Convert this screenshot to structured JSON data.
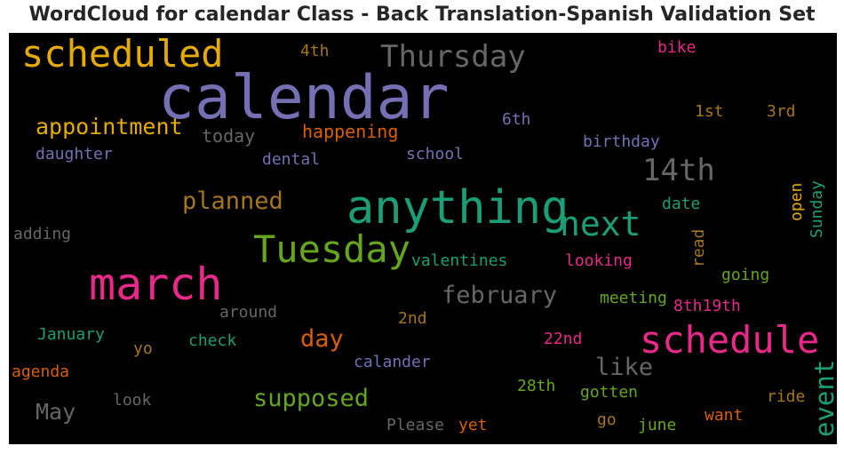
{
  "chart_data": {
    "type": "wordcloud",
    "title": "WordCloud for calendar Class - Back Translation-Spanish Validation Set",
    "background": "#000000",
    "palette": [
      "#7570b3",
      "#1b9e77",
      "#e7298a",
      "#66a61e",
      "#e6ab02",
      "#d95f02",
      "#a6761d",
      "#666666"
    ],
    "words": [
      {
        "text": "calendar",
        "color": "#7570b3"
      },
      {
        "text": "anything",
        "color": "#1b9e77"
      },
      {
        "text": "march",
        "color": "#e7298a"
      },
      {
        "text": "schedule",
        "color": "#e7298a"
      },
      {
        "text": "Tuesday",
        "color": "#66a61e"
      },
      {
        "text": "scheduled",
        "color": "#e6ab02"
      },
      {
        "text": "next",
        "color": "#1b9e77"
      },
      {
        "text": "Thursday",
        "color": "#666666"
      },
      {
        "text": "14th",
        "color": "#666666"
      },
      {
        "text": "appointment",
        "color": "#e6ab02"
      },
      {
        "text": "planned",
        "color": "#a6761d"
      },
      {
        "text": "february",
        "color": "#666666"
      },
      {
        "text": "supposed",
        "color": "#66a61e"
      },
      {
        "text": "like",
        "color": "#666666"
      },
      {
        "text": "event",
        "color": "#1b9e77"
      },
      {
        "text": "day",
        "color": "#d95f02"
      },
      {
        "text": "May",
        "color": "#666666"
      },
      {
        "text": "happening",
        "color": "#d95f02"
      },
      {
        "text": "today",
        "color": "#666666"
      },
      {
        "text": "daughter",
        "color": "#7570b3"
      },
      {
        "text": "dental",
        "color": "#7570b3"
      },
      {
        "text": "school",
        "color": "#7570b3"
      },
      {
        "text": "birthday",
        "color": "#7570b3"
      },
      {
        "text": "bike",
        "color": "#e7298a"
      },
      {
        "text": "4th",
        "color": "#a6761d"
      },
      {
        "text": "6th",
        "color": "#7570b3"
      },
      {
        "text": "1st",
        "color": "#a6761d"
      },
      {
        "text": "3rd",
        "color": "#a6761d"
      },
      {
        "text": "date",
        "color": "#1b9e77"
      },
      {
        "text": "open",
        "color": "#e6ab02"
      },
      {
        "text": "Sunday",
        "color": "#1b9e77"
      },
      {
        "text": "read",
        "color": "#a6761d"
      },
      {
        "text": "adding",
        "color": "#666666"
      },
      {
        "text": "valentines",
        "color": "#1b9e77"
      },
      {
        "text": "looking",
        "color": "#e7298a"
      },
      {
        "text": "going",
        "color": "#66a61e"
      },
      {
        "text": "meeting",
        "color": "#66a61e"
      },
      {
        "text": "around",
        "color": "#666666"
      },
      {
        "text": "8th19th",
        "color": "#e7298a"
      },
      {
        "text": "2nd",
        "color": "#a6761d"
      },
      {
        "text": "January",
        "color": "#1b9e77"
      },
      {
        "text": "yo",
        "color": "#a6761d"
      },
      {
        "text": "check",
        "color": "#1b9e77"
      },
      {
        "text": "22nd",
        "color": "#e7298a"
      },
      {
        "text": "agenda",
        "color": "#d95f02"
      },
      {
        "text": "calander",
        "color": "#7570b3"
      },
      {
        "text": "28th",
        "color": "#66a61e"
      },
      {
        "text": "gotten",
        "color": "#66a61e"
      },
      {
        "text": "ride",
        "color": "#a6761d"
      },
      {
        "text": "look",
        "color": "#666666"
      },
      {
        "text": "go",
        "color": "#a6761d"
      },
      {
        "text": "want",
        "color": "#d95f02"
      },
      {
        "text": "june",
        "color": "#66a61e"
      },
      {
        "text": "Please",
        "color": "#666666"
      },
      {
        "text": "yet",
        "color": "#d95f02"
      }
    ]
  }
}
